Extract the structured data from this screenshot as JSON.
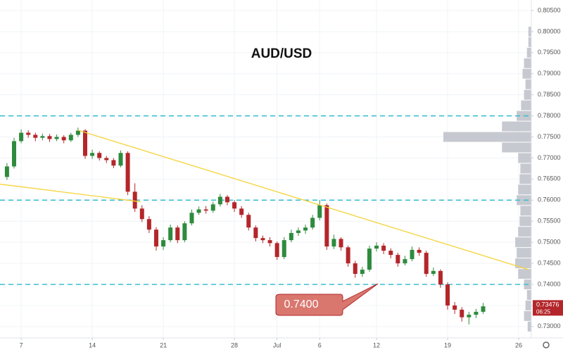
{
  "chart_data": {
    "type": "candlestick",
    "title": "AUD/USD",
    "up_color": "#2e8b3e",
    "down_color": "#b3262a",
    "grid": true,
    "xlim": [
      -1.49,
      35.89
    ],
    "ylim": [
      0.7273,
      0.8075
    ],
    "xticks": [
      {
        "value": 0,
        "label": "7"
      },
      {
        "value": 5,
        "label": "14"
      },
      {
        "value": 10,
        "label": "21"
      },
      {
        "value": 15,
        "label": "28"
      },
      {
        "value": 18,
        "label": "Jul"
      },
      {
        "value": 21,
        "label": "6"
      },
      {
        "value": 25,
        "label": "12"
      },
      {
        "value": 30,
        "label": "19"
      },
      {
        "value": 35,
        "label": "26"
      }
    ],
    "yticks": [
      {
        "value": 0.73,
        "label": "0.73000"
      },
      {
        "value": 0.735,
        "label": "0.73500"
      },
      {
        "value": 0.74,
        "label": "0.74000"
      },
      {
        "value": 0.745,
        "label": "0.74500"
      },
      {
        "value": 0.75,
        "label": "0.75000"
      },
      {
        "value": 0.755,
        "label": "0.75500"
      },
      {
        "value": 0.76,
        "label": "0.76000"
      },
      {
        "value": 0.765,
        "label": "0.76500"
      },
      {
        "value": 0.77,
        "label": "0.77000"
      },
      {
        "value": 0.775,
        "label": "0.77500"
      },
      {
        "value": 0.78,
        "label": "0.78000"
      },
      {
        "value": 0.785,
        "label": "0.78500"
      },
      {
        "value": 0.79,
        "label": "0.79000"
      },
      {
        "value": 0.795,
        "label": "0.79500"
      },
      {
        "value": 0.8,
        "label": "0.80000"
      },
      {
        "value": 0.805,
        "label": "0.80500"
      }
    ],
    "x": [
      -1.0,
      -0.5,
      0,
      0.5,
      1,
      1.5,
      2,
      2.5,
      3,
      3.5,
      4,
      4.5,
      5,
      5.5,
      6,
      6.5,
      7,
      7.5,
      8,
      8.5,
      9,
      9.5,
      10,
      10.5,
      11,
      11.5,
      12,
      12.5,
      13,
      13.5,
      14,
      14.5,
      15,
      15.5,
      16,
      16.5,
      17,
      17.5,
      18,
      18.5,
      19,
      19.5,
      20,
      20.5,
      21,
      21.5,
      22,
      22.5,
      23,
      23.5,
      24,
      24.5,
      25,
      25.5,
      26,
      26.5,
      27,
      27.5,
      28,
      28.5,
      29,
      29.5,
      30,
      30.5,
      31,
      31.5,
      32,
      32.5
    ],
    "ohlc": [
      [
        0.7655,
        0.7688,
        0.7648,
        0.768
      ],
      [
        0.768,
        0.7748,
        0.7675,
        0.774
      ],
      [
        0.774,
        0.7768,
        0.7735,
        0.776
      ],
      [
        0.776,
        0.7766,
        0.7748,
        0.7755
      ],
      [
        0.7755,
        0.776,
        0.774,
        0.7748
      ],
      [
        0.7748,
        0.7758,
        0.7742,
        0.7752
      ],
      [
        0.7752,
        0.7757,
        0.7738,
        0.7745
      ],
      [
        0.7745,
        0.7756,
        0.774,
        0.775
      ],
      [
        0.775,
        0.7754,
        0.7735,
        0.7742
      ],
      [
        0.7742,
        0.776,
        0.7738,
        0.7755
      ],
      [
        0.7755,
        0.7772,
        0.775,
        0.7765
      ],
      [
        0.7765,
        0.7768,
        0.7698,
        0.7705
      ],
      [
        0.7705,
        0.772,
        0.7698,
        0.7712
      ],
      [
        0.7712,
        0.7716,
        0.7694,
        0.77
      ],
      [
        0.77,
        0.7705,
        0.7688,
        0.7695
      ],
      [
        0.7695,
        0.77,
        0.7676,
        0.7682
      ],
      [
        0.7682,
        0.7718,
        0.7678,
        0.7712
      ],
      [
        0.7712,
        0.7716,
        0.7612,
        0.762
      ],
      [
        0.762,
        0.764,
        0.7572,
        0.758
      ],
      [
        0.758,
        0.7588,
        0.7548,
        0.7555
      ],
      [
        0.7555,
        0.7562,
        0.7522,
        0.753
      ],
      [
        0.753,
        0.7536,
        0.748,
        0.749
      ],
      [
        0.749,
        0.7512,
        0.7482,
        0.7505
      ],
      [
        0.7505,
        0.7542,
        0.75,
        0.7535
      ],
      [
        0.7535,
        0.754,
        0.7498,
        0.7505
      ],
      [
        0.7505,
        0.755,
        0.75,
        0.7545
      ],
      [
        0.7545,
        0.7578,
        0.754,
        0.757
      ],
      [
        0.757,
        0.7585,
        0.7565,
        0.7578
      ],
      [
        0.7578,
        0.7586,
        0.7568,
        0.7575
      ],
      [
        0.7575,
        0.7596,
        0.757,
        0.759
      ],
      [
        0.759,
        0.7615,
        0.7585,
        0.7608
      ],
      [
        0.7608,
        0.7612,
        0.7588,
        0.7595
      ],
      [
        0.7595,
        0.76,
        0.7572,
        0.758
      ],
      [
        0.758,
        0.7586,
        0.7558,
        0.7565
      ],
      [
        0.7565,
        0.757,
        0.7528,
        0.7535
      ],
      [
        0.7535,
        0.754,
        0.7502,
        0.751
      ],
      [
        0.751,
        0.7516,
        0.7498,
        0.7505
      ],
      [
        0.7505,
        0.7512,
        0.749,
        0.7498
      ],
      [
        0.7498,
        0.7502,
        0.7458,
        0.7465
      ],
      [
        0.7465,
        0.7512,
        0.746,
        0.7505
      ],
      [
        0.7505,
        0.753,
        0.75,
        0.7522
      ],
      [
        0.7522,
        0.7535,
        0.7515,
        0.7528
      ],
      [
        0.7528,
        0.7542,
        0.752,
        0.7535
      ],
      [
        0.7535,
        0.7565,
        0.753,
        0.7558
      ],
      [
        0.7558,
        0.76,
        0.7552,
        0.7588
      ],
      [
        0.7588,
        0.7592,
        0.7482,
        0.749
      ],
      [
        0.749,
        0.7518,
        0.7484,
        0.7508
      ],
      [
        0.7508,
        0.7512,
        0.748,
        0.7488
      ],
      [
        0.7488,
        0.7492,
        0.7442,
        0.745
      ],
      [
        0.745,
        0.7456,
        0.7416,
        0.7425
      ],
      [
        0.7425,
        0.7442,
        0.7418,
        0.7435
      ],
      [
        0.7435,
        0.7492,
        0.743,
        0.7485
      ],
      [
        0.7485,
        0.75,
        0.7478,
        0.7492
      ],
      [
        0.7492,
        0.7498,
        0.7472,
        0.748
      ],
      [
        0.748,
        0.7486,
        0.7462,
        0.747
      ],
      [
        0.747,
        0.7475,
        0.7442,
        0.745
      ],
      [
        0.745,
        0.7468,
        0.7445,
        0.746
      ],
      [
        0.746,
        0.749,
        0.7455,
        0.7482
      ],
      [
        0.7482,
        0.7488,
        0.7468,
        0.7475
      ],
      [
        0.7475,
        0.748,
        0.7418,
        0.7425
      ],
      [
        0.7425,
        0.744,
        0.742,
        0.7432
      ],
      [
        0.7432,
        0.7436,
        0.7392,
        0.74
      ],
      [
        0.74,
        0.7405,
        0.734,
        0.735
      ],
      [
        0.735,
        0.7358,
        0.733,
        0.734
      ],
      [
        0.734,
        0.7346,
        0.7312,
        0.7322
      ],
      [
        0.7322,
        0.7335,
        0.7305,
        0.7328
      ],
      [
        0.7328,
        0.7342,
        0.732,
        0.7335
      ],
      [
        0.7335,
        0.7356,
        0.733,
        0.7348
      ]
    ],
    "levels": [
      0.78,
      0.76,
      0.74
    ],
    "level_color": "#3bbfd0",
    "trend_color": "#f5d33a",
    "trendlines": [
      {
        "x": [
          4,
          35.7
        ],
        "y": [
          0.7766,
          0.7435
        ]
      },
      {
        "x": [
          -1.49,
          8.4
        ],
        "y": [
          0.7638,
          0.7596
        ]
      }
    ],
    "volume_profile": {
      "color": "#b8bcc4",
      "prices": [
        0.73,
        0.7325,
        0.735,
        0.7375,
        0.74,
        0.7425,
        0.745,
        0.7475,
        0.75,
        0.7525,
        0.755,
        0.7575,
        0.76,
        0.7625,
        0.765,
        0.7675,
        0.77,
        0.7725,
        0.775,
        0.7775,
        0.78,
        0.7825,
        0.785,
        0.7875,
        0.79,
        0.7925,
        0.795,
        0.7975,
        0.8
      ],
      "values": [
        5,
        10,
        8,
        6,
        10,
        18,
        22,
        20,
        22,
        18,
        16,
        15,
        20,
        18,
        16,
        15,
        18,
        40,
        120,
        40,
        20,
        14,
        10,
        8,
        12,
        10,
        6,
        4,
        4
      ]
    },
    "annotation": {
      "text": "0.7400"
    },
    "last_price": {
      "value": 0.73476,
      "label": "0.73476"
    },
    "countdown": "06:25"
  }
}
